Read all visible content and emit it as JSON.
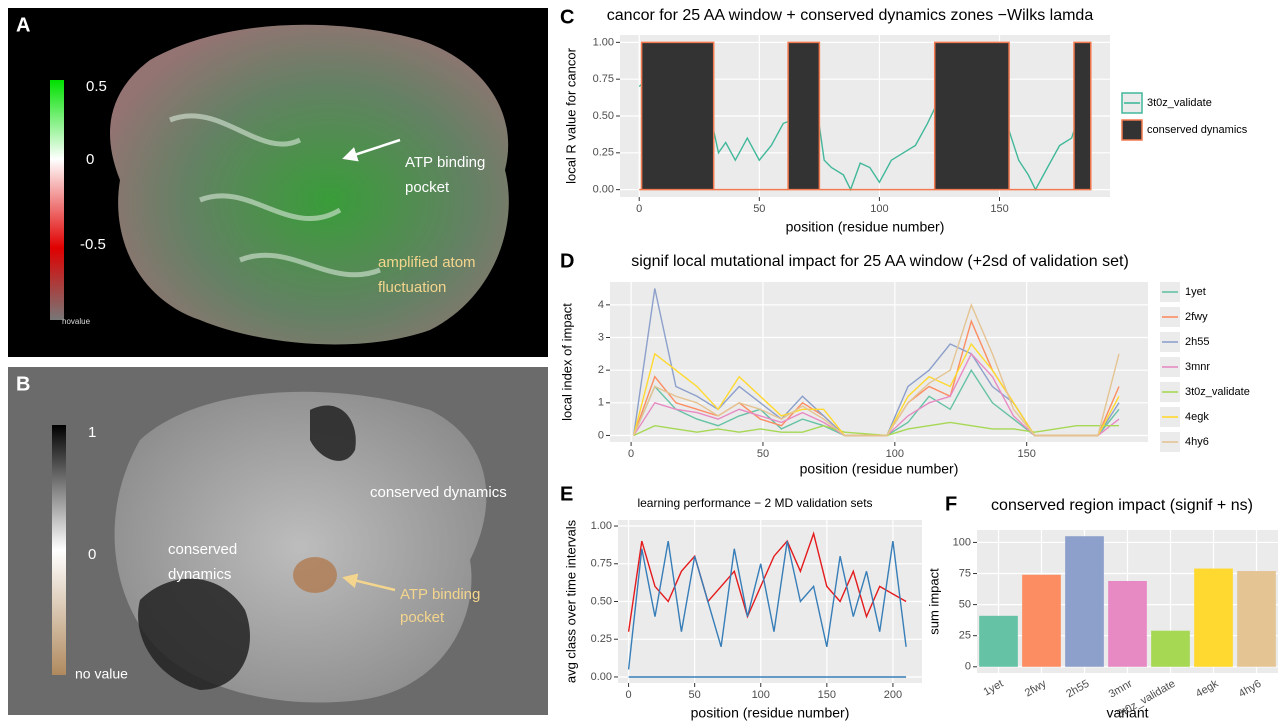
{
  "panels": {
    "A": {
      "label": "A",
      "scale": [
        "0.5",
        "0",
        "-0.5",
        "novalue"
      ],
      "annotations": [
        [
          "ATP binding",
          "pocket"
        ],
        [
          "amplified atom",
          "fluctuation"
        ]
      ]
    },
    "B": {
      "label": "B",
      "scale": [
        "1",
        "0",
        "no value"
      ],
      "annotations": [
        [
          "conserved dynamics"
        ],
        [
          "ATP binding",
          "pocket"
        ],
        [
          "conserved",
          "dynamics"
        ]
      ]
    }
  },
  "chart_data": [
    {
      "type": "line",
      "panel_label": "C",
      "title": "cancor for 25 AA window + conserved dynamics zones −Wilks lamda",
      "x_label": "position (residue number)",
      "y_label": "local R value for cancor",
      "x": [
        0,
        5,
        10,
        15,
        20,
        25,
        30,
        31,
        33,
        36,
        40,
        45,
        50,
        55,
        60,
        65,
        70,
        75,
        77,
        80,
        85,
        88,
        92,
        96,
        100,
        105,
        110,
        115,
        120,
        125,
        130,
        135,
        140,
        145,
        150,
        153,
        158,
        162,
        165,
        170,
        175,
        180,
        183,
        185,
        188
      ],
      "xlim": [
        -8,
        196
      ],
      "xticks": [
        0,
        50,
        100,
        150
      ],
      "ylim": [
        -0.05,
        1.05
      ],
      "yticks": [
        {
          "value": 0,
          "label": "0.00"
        },
        {
          "value": 0.25,
          "label": "0.25"
        },
        {
          "value": 0.5,
          "label": "0.50"
        },
        {
          "value": 0.75,
          "label": "0.75"
        },
        {
          "value": 1,
          "label": "1.00"
        }
      ],
      "grid": true,
      "legend": "right",
      "series": [
        {
          "name": "3t0z_validate",
          "color": "#41b89a",
          "values": [
            0.7,
            0.77,
            0.76,
            0.77,
            0.74,
            0.72,
            0.65,
            0.4,
            0.25,
            0.32,
            0.2,
            0.35,
            0.2,
            0.3,
            0.45,
            0.48,
            0.45,
            0.43,
            0.2,
            0.15,
            0.1,
            0.0,
            0.18,
            0.15,
            0.05,
            0.2,
            0.25,
            0.3,
            0.45,
            0.62,
            0.65,
            0.72,
            0.6,
            0.55,
            0.5,
            0.45,
            0.2,
            0.1,
            0.0,
            0.15,
            0.3,
            0.35,
            0.5,
            0.55,
            0.5
          ]
        },
        {
          "name": "conserved dynamics",
          "type": "area",
          "color": "#f4794e",
          "fill": "#333333",
          "x": [
            0,
            1,
            1,
            31,
            31,
            62,
            62,
            75,
            75,
            123,
            123,
            154,
            154,
            181,
            181,
            188,
            188
          ],
          "values": [
            0,
            0,
            1,
            1,
            0,
            0,
            1,
            1,
            0,
            0,
            1,
            1,
            0,
            0,
            1,
            1,
            0
          ]
        }
      ]
    },
    {
      "type": "line",
      "panel_label": "D",
      "title": "signif local mutational impact for 25 AA window (+2sd of validation set)",
      "x_label": "position (residue number)",
      "y_label": "local index of impact",
      "x": [
        1,
        9,
        17,
        25,
        33,
        41,
        49,
        57,
        65,
        73,
        81,
        89,
        97,
        105,
        113,
        121,
        129,
        137,
        145,
        153,
        161,
        169,
        177,
        185
      ],
      "xlim": [
        -8,
        196
      ],
      "xticks": [
        0,
        50,
        100,
        150
      ],
      "ylim": [
        -0.2,
        4.7
      ],
      "yticks": [
        0,
        1,
        2,
        3,
        4
      ],
      "grid": true,
      "legend": "right",
      "series": [
        {
          "name": "1yet",
          "color": "#66c2a5",
          "values": [
            0,
            1.5,
            0.8,
            0.5,
            0.3,
            0.6,
            0.8,
            0.2,
            0.5,
            0.3,
            0,
            0,
            0,
            0.4,
            1.2,
            0.8,
            2.0,
            1.0,
            0.5,
            0,
            0,
            0,
            0,
            0.8
          ]
        },
        {
          "name": "2fwy",
          "color": "#fc8d62",
          "values": [
            0,
            1.8,
            1.0,
            0.8,
            0.6,
            1.0,
            0.5,
            0.3,
            1.0,
            0.6,
            0,
            0,
            0,
            1.0,
            1.5,
            1.2,
            3.5,
            2.0,
            1.0,
            0,
            0,
            0,
            0,
            1.5
          ]
        },
        {
          "name": "2h55",
          "color": "#8da0cb",
          "values": [
            0,
            4.5,
            1.5,
            1.2,
            0.8,
            1.5,
            1.0,
            0.5,
            1.2,
            0.6,
            0,
            0,
            0,
            1.5,
            2.0,
            2.8,
            2.5,
            1.5,
            1.0,
            0,
            0,
            0,
            0,
            1.0
          ]
        },
        {
          "name": "3mnr",
          "color": "#e78ac3",
          "values": [
            0,
            1.0,
            0.8,
            0.7,
            0.5,
            0.8,
            0.6,
            0.4,
            0.7,
            0.4,
            0,
            0,
            0,
            0.6,
            1.0,
            1.2,
            2.5,
            1.8,
            0.6,
            0,
            0,
            0,
            0,
            0.5
          ]
        },
        {
          "name": "3t0z_validate",
          "color": "#a6d854",
          "values": [
            0,
            0.3,
            0.2,
            0.1,
            0.2,
            0.1,
            0.2,
            0.1,
            0.1,
            0.3,
            0.1,
            0.05,
            0,
            0.2,
            0.3,
            0.4,
            0.3,
            0.2,
            0.2,
            0.1,
            0.2,
            0.3,
            0.3,
            0.3
          ]
        },
        {
          "name": "4egk",
          "color": "#ffd92f",
          "values": [
            0,
            2.5,
            2.0,
            1.5,
            0.8,
            1.8,
            1.2,
            0.6,
            0.8,
            0.8,
            0,
            0,
            0,
            1.2,
            1.8,
            1.5,
            2.8,
            2.0,
            1.0,
            0,
            0,
            0,
            0,
            1.2
          ]
        },
        {
          "name": "4hy6",
          "color": "#e5c494",
          "values": [
            0,
            1.5,
            1.2,
            1.0,
            0.6,
            1.0,
            0.8,
            0.5,
            0.9,
            0.5,
            0,
            0,
            0,
            1.0,
            1.6,
            2.0,
            4.0,
            2.5,
            0.8,
            0,
            0,
            0,
            0,
            2.5
          ]
        }
      ]
    },
    {
      "type": "line",
      "panel_label": "E",
      "title": "learning performance − 2 MD validation sets",
      "x_label": "position (residue number)",
      "y_label": "avg class over time intervals",
      "x": [
        0,
        10,
        20,
        30,
        40,
        50,
        60,
        70,
        80,
        90,
        100,
        110,
        120,
        130,
        140,
        150,
        160,
        170,
        180,
        190,
        200,
        210
      ],
      "xlim": [
        -8,
        222
      ],
      "xticks": [
        0,
        50,
        100,
        150,
        200
      ],
      "ylim": [
        -0.04,
        1.04
      ],
      "yticks": [
        {
          "value": 0,
          "label": "0.00"
        },
        {
          "value": 0.25,
          "label": "0.25"
        },
        {
          "value": 0.5,
          "label": "0.50"
        },
        {
          "value": 0.75,
          "label": "0.75"
        },
        {
          "value": 1,
          "label": "1.00"
        }
      ],
      "grid": true,
      "series": [
        {
          "color": "#e41a1c",
          "values": [
            0.3,
            0.9,
            0.6,
            0.5,
            0.7,
            0.8,
            0.5,
            0.6,
            0.7,
            0.4,
            0.6,
            0.8,
            0.9,
            0.7,
            0.95,
            0.6,
            0.5,
            0.7,
            0.4,
            0.6,
            0.55,
            0.5
          ]
        },
        {
          "color": "#377eb8",
          "values": [
            0.05,
            0.85,
            0.4,
            0.9,
            0.3,
            0.8,
            0.5,
            0.2,
            0.85,
            0.4,
            0.75,
            0.3,
            0.9,
            0.5,
            0.6,
            0.2,
            0.8,
            0.4,
            0.7,
            0.3,
            0.9,
            0.2
          ]
        },
        {
          "color": "#377eb8",
          "values": [
            0,
            0,
            0,
            0,
            0,
            0,
            0,
            0,
            0,
            0,
            0,
            0,
            0,
            0,
            0,
            0,
            0,
            0,
            0,
            0,
            0,
            0
          ]
        }
      ]
    },
    {
      "type": "bar",
      "panel_label": "F",
      "title": "conserved region impact (signif + ns)",
      "x_label": "variant",
      "y_label": "sum impact",
      "categories": [
        "1yet",
        "2fwy",
        "2h55",
        "3mnr",
        "3t0z_validate",
        "4egk",
        "4hy6"
      ],
      "values": [
        41,
        74,
        105,
        69,
        29,
        79,
        77
      ],
      "colors": [
        "#66c2a5",
        "#fc8d62",
        "#8da0cb",
        "#e78ac3",
        "#a6d854",
        "#ffd92f",
        "#e5c494"
      ],
      "ylim": [
        -5,
        110
      ],
      "yticks": [
        0,
        25,
        50,
        75,
        100
      ],
      "grid": true
    }
  ]
}
